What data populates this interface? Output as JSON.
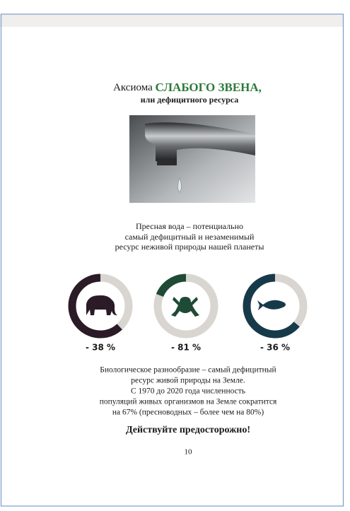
{
  "header": {
    "title_prefix": "Аксиома",
    "title_highlight": "СЛАБОГО ЗВЕНА,",
    "subtitle": "или дефицитного ресурса"
  },
  "intro": [
    "Пресная вода – потенциально",
    "самый дефицитный и незаменимый",
    "ресурс неживой природы нашей планеты"
  ],
  "chart_data": {
    "type": "donut",
    "values": [
      -38,
      -81,
      -36
    ],
    "value_labels": [
      "- 38 %",
      "- 81 %",
      "- 36 %"
    ],
    "colors": [
      "#2b1b26",
      "#1f4a36",
      "#173a4a"
    ],
    "rest_color": "#d9d5d0"
  },
  "body": [
    "Биологическое разнообразие – самый дефицитный",
    "ресурс живой природы на Земле.",
    "С 1970 до 2020 года численность",
    "популяций живых организмов на Земле сократится",
    "на 67% (пресноводных – более чем на 80%)"
  ],
  "call_to_action": "Действуйте предосторожно!",
  "page_number": 10
}
